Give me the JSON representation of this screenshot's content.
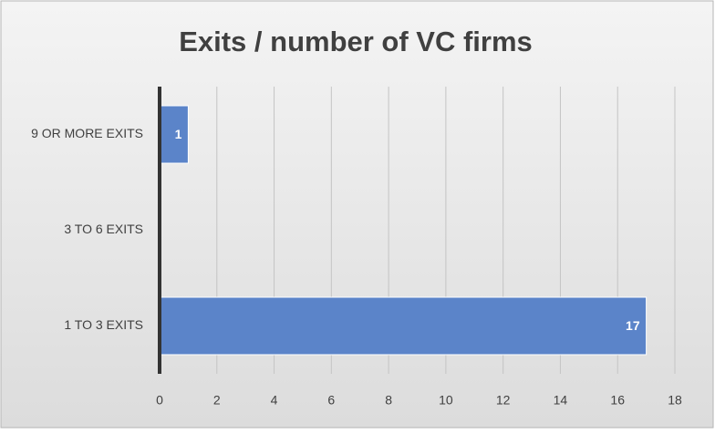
{
  "chart_data": {
    "type": "bar",
    "orientation": "horizontal",
    "title": "Exits / number of VC firms",
    "categories": [
      "9 OR MORE EXITS",
      "3 TO 6 EXITS",
      "1 TO 3 EXITS"
    ],
    "values": [
      1,
      null,
      17
    ],
    "color": "#5b84c9",
    "xlim": [
      0,
      18
    ],
    "xticks": [
      0,
      2,
      4,
      6,
      8,
      10,
      12,
      14,
      16,
      18
    ],
    "grid": true
  }
}
